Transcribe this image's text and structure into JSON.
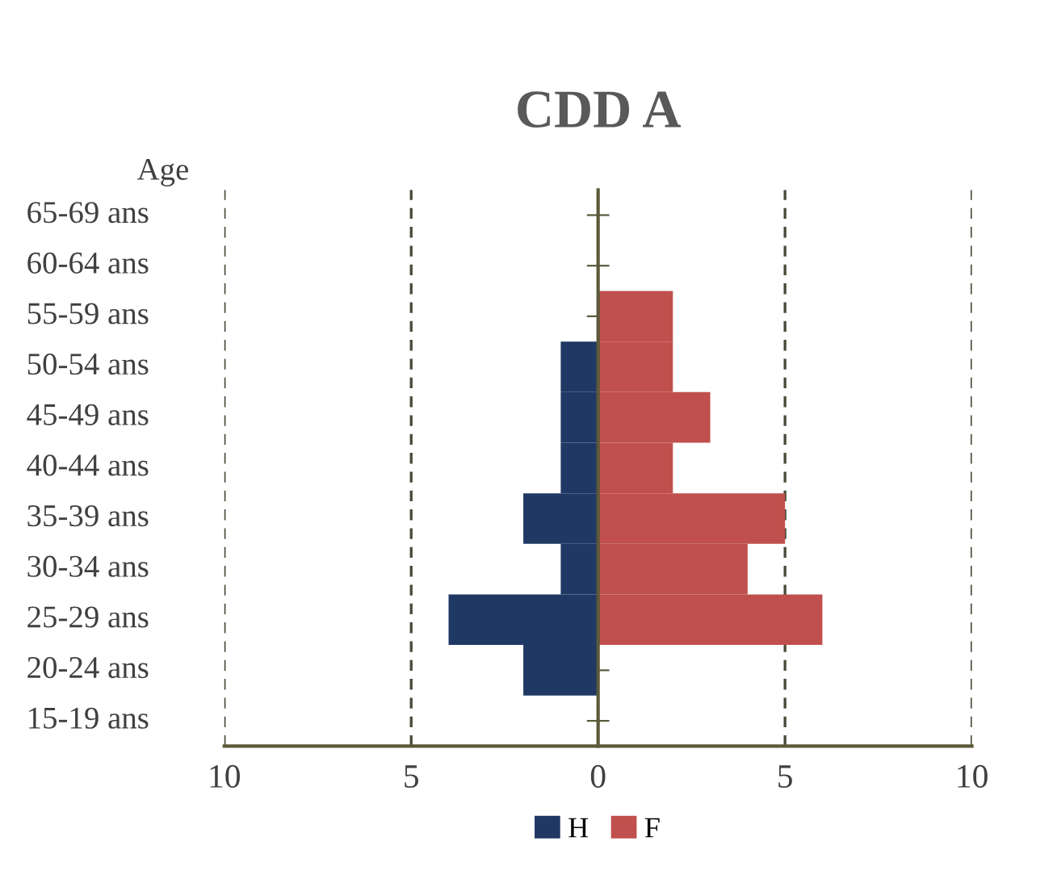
{
  "chart_data": {
    "type": "bar",
    "orientation": "horizontal",
    "stacked": true,
    "title": "CDD A",
    "ylabel": "Age",
    "categories": [
      "65-69 ans",
      "60-64 ans",
      "55-59 ans",
      "50-54 ans",
      "45-49 ans",
      "40-44 ans",
      "35-39 ans",
      "30-34 ans",
      "25-29 ans",
      "20-24 ans",
      "15-19 ans"
    ],
    "series": [
      {
        "name": "H",
        "color": "#1f3864",
        "values": [
          0,
          0,
          0,
          -1,
          -1,
          -1,
          -2,
          -1,
          -4,
          -2,
          0
        ]
      },
      {
        "name": "F",
        "color": "#c0504d",
        "values": [
          0,
          0,
          2,
          2,
          3,
          2,
          5,
          4,
          6,
          0,
          0
        ]
      }
    ],
    "xlim": [
      -10,
      10
    ],
    "xticks": [
      {
        "value": -10,
        "label": "10"
      },
      {
        "value": -5,
        "label": "5"
      },
      0,
      5,
      10
    ],
    "grid": "x",
    "legend": "bottom"
  }
}
